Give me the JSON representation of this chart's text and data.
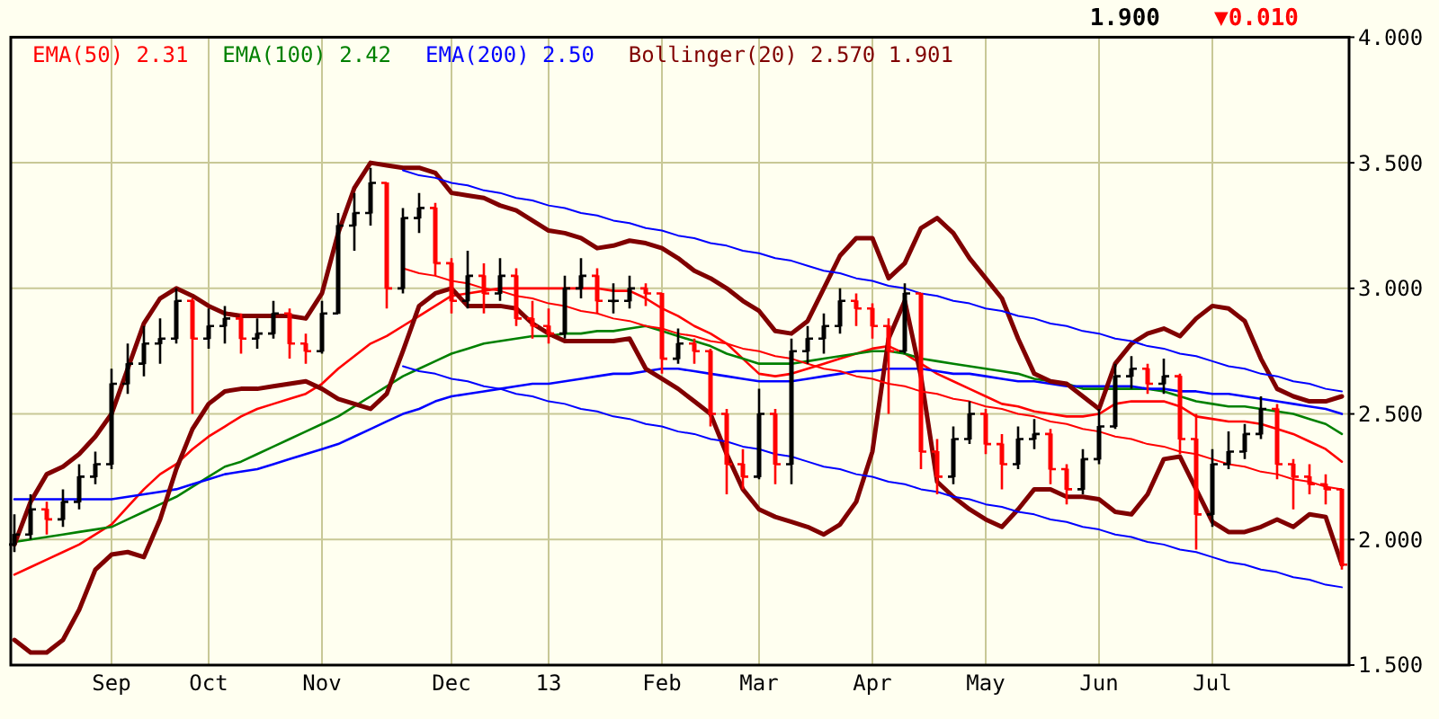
{
  "chart_data": {
    "type": "candlestick",
    "categories": [
      null,
      null,
      null,
      null,
      null,
      null,
      "Sep",
      null,
      null,
      null,
      null,
      null,
      "Oct",
      null,
      null,
      null,
      null,
      null,
      null,
      "Nov",
      null,
      null,
      null,
      null,
      null,
      null,
      null,
      "Dec",
      null,
      null,
      null,
      null,
      null,
      "13",
      null,
      null,
      null,
      null,
      null,
      null,
      "Feb",
      null,
      null,
      null,
      null,
      null,
      "Mar",
      null,
      null,
      null,
      null,
      null,
      null,
      "Apr",
      null,
      null,
      null,
      null,
      null,
      null,
      "May",
      null,
      null,
      null,
      null,
      null,
      null,
      "Jun",
      null,
      null,
      null,
      null,
      null,
      null,
      "Jul",
      null,
      null,
      null,
      null,
      null,
      null,
      null,
      null
    ],
    "ohlc": [
      [
        1.98,
        2.1,
        1.95,
        2.02
      ],
      [
        2.02,
        2.18,
        2.0,
        2.12
      ],
      [
        2.12,
        2.15,
        2.02,
        2.08
      ],
      [
        2.08,
        2.2,
        2.05,
        2.15
      ],
      [
        2.15,
        2.3,
        2.12,
        2.25
      ],
      [
        2.25,
        2.35,
        2.22,
        2.3
      ],
      [
        2.3,
        2.68,
        2.28,
        2.62
      ],
      [
        2.62,
        2.78,
        2.58,
        2.7
      ],
      [
        2.7,
        2.85,
        2.65,
        2.78
      ],
      [
        2.78,
        2.88,
        2.7,
        2.8
      ],
      [
        2.8,
        3.0,
        2.78,
        2.95
      ],
      [
        2.95,
        2.96,
        2.5,
        2.8
      ],
      [
        2.8,
        2.92,
        2.76,
        2.85
      ],
      [
        2.85,
        2.93,
        2.78,
        2.88
      ],
      [
        2.88,
        2.9,
        2.74,
        2.8
      ],
      [
        2.8,
        2.88,
        2.76,
        2.82
      ],
      [
        2.82,
        2.95,
        2.8,
        2.9
      ],
      [
        2.9,
        2.92,
        2.72,
        2.78
      ],
      [
        2.78,
        2.82,
        2.7,
        2.75
      ],
      [
        2.75,
        2.95,
        2.74,
        2.9
      ],
      [
        2.9,
        3.3,
        2.9,
        3.25
      ],
      [
        3.25,
        3.38,
        3.15,
        3.3
      ],
      [
        3.3,
        3.48,
        3.25,
        3.42
      ],
      [
        3.42,
        3.42,
        2.92,
        3.0
      ],
      [
        3.0,
        3.32,
        2.98,
        3.28
      ],
      [
        3.28,
        3.38,
        3.22,
        3.32
      ],
      [
        3.32,
        3.34,
        3.05,
        3.1
      ],
      [
        3.1,
        3.12,
        2.9,
        2.95
      ],
      [
        2.95,
        3.15,
        2.92,
        3.05
      ],
      [
        3.05,
        3.1,
        2.9,
        2.98
      ],
      [
        2.98,
        3.12,
        2.95,
        3.05
      ],
      [
        3.05,
        3.08,
        2.85,
        2.88
      ],
      [
        2.88,
        2.95,
        2.8,
        2.85
      ],
      [
        2.85,
        2.92,
        2.78,
        2.82
      ],
      [
        2.82,
        3.05,
        2.8,
        3.0
      ],
      [
        3.0,
        3.12,
        2.96,
        3.05
      ],
      [
        3.05,
        3.08,
        2.9,
        2.95
      ],
      [
        2.95,
        3.02,
        2.9,
        2.95
      ],
      [
        2.95,
        3.05,
        2.92,
        3.0
      ],
      [
        3.0,
        3.02,
        2.93,
        2.98
      ],
      [
        2.98,
        2.98,
        2.66,
        2.72
      ],
      [
        2.72,
        2.84,
        2.7,
        2.78
      ],
      [
        2.78,
        2.8,
        2.7,
        2.75
      ],
      [
        2.75,
        2.76,
        2.45,
        2.5
      ],
      [
        2.5,
        2.52,
        2.18,
        2.3
      ],
      [
        2.3,
        2.36,
        2.2,
        2.25
      ],
      [
        2.25,
        2.6,
        2.24,
        2.5
      ],
      [
        2.5,
        2.52,
        2.22,
        2.3
      ],
      [
        2.3,
        2.8,
        2.22,
        2.75
      ],
      [
        2.75,
        2.85,
        2.7,
        2.8
      ],
      [
        2.8,
        2.9,
        2.74,
        2.85
      ],
      [
        2.85,
        3.0,
        2.82,
        2.95
      ],
      [
        2.95,
        2.98,
        2.85,
        2.92
      ],
      [
        2.92,
        2.94,
        2.8,
        2.85
      ],
      [
        2.85,
        2.88,
        2.5,
        2.75
      ],
      [
        2.75,
        3.02,
        2.74,
        2.98
      ],
      [
        2.98,
        2.98,
        2.28,
        2.35
      ],
      [
        2.35,
        2.4,
        2.18,
        2.25
      ],
      [
        2.25,
        2.45,
        2.22,
        2.4
      ],
      [
        2.4,
        2.55,
        2.38,
        2.5
      ],
      [
        2.5,
        2.52,
        2.34,
        2.38
      ],
      [
        2.38,
        2.42,
        2.2,
        2.3
      ],
      [
        2.3,
        2.45,
        2.28,
        2.4
      ],
      [
        2.4,
        2.48,
        2.36,
        2.42
      ],
      [
        2.42,
        2.44,
        2.22,
        2.28
      ],
      [
        2.28,
        2.3,
        2.14,
        2.2
      ],
      [
        2.2,
        2.36,
        2.18,
        2.32
      ],
      [
        2.32,
        2.52,
        2.3,
        2.45
      ],
      [
        2.45,
        2.7,
        2.44,
        2.65
      ],
      [
        2.65,
        2.73,
        2.6,
        2.68
      ],
      [
        2.68,
        2.7,
        2.58,
        2.62
      ],
      [
        2.62,
        2.72,
        2.58,
        2.65
      ],
      [
        2.65,
        2.66,
        2.34,
        2.4
      ],
      [
        2.4,
        2.5,
        1.96,
        2.1
      ],
      [
        2.1,
        2.36,
        2.05,
        2.3
      ],
      [
        2.3,
        2.43,
        2.28,
        2.35
      ],
      [
        2.35,
        2.46,
        2.32,
        2.42
      ],
      [
        2.42,
        2.57,
        2.4,
        2.52
      ],
      [
        2.52,
        2.54,
        2.24,
        2.3
      ],
      [
        2.3,
        2.32,
        2.12,
        2.25
      ],
      [
        2.25,
        2.3,
        2.18,
        2.22
      ],
      [
        2.22,
        2.26,
        2.14,
        2.2
      ],
      [
        2.2,
        2.2,
        1.88,
        1.9
      ]
    ],
    "colors": [
      "#000000",
      "#000000",
      "#ff0000",
      "#000000",
      "#000000",
      "#000000",
      "#000000",
      "#000000",
      "#000000",
      "#000000",
      "#000000",
      "#ff0000",
      "#000000",
      "#000000",
      "#ff0000",
      "#000000",
      "#000000",
      "#ff0000",
      "#ff0000",
      "#000000",
      "#000000",
      "#000000",
      "#000000",
      "#ff0000",
      "#000000",
      "#000000",
      "#ff0000",
      "#ff0000",
      "#000000",
      "#ff0000",
      "#000000",
      "#ff0000",
      "#ff0000",
      "#ff0000",
      "#000000",
      "#000000",
      "#ff0000",
      "#000000",
      "#000000",
      "#ff0000",
      "#ff0000",
      "#000000",
      "#ff0000",
      "#ff0000",
      "#ff0000",
      "#ff0000",
      "#000000",
      "#ff0000",
      "#000000",
      "#000000",
      "#000000",
      "#000000",
      "#ff0000",
      "#ff0000",
      "#ff0000",
      "#000000",
      "#ff0000",
      "#ff0000",
      "#000000",
      "#000000",
      "#ff0000",
      "#ff0000",
      "#000000",
      "#000000",
      "#ff0000",
      "#ff0000",
      "#000000",
      "#000000",
      "#000000",
      "#000000",
      "#ff0000",
      "#000000",
      "#ff0000",
      "#ff0000",
      "#000000",
      "#000000",
      "#000000",
      "#000000",
      "#ff0000",
      "#ff0000",
      "#ff0000",
      "#ff0000",
      "#ff0000"
    ],
    "series": [
      {
        "type": "line",
        "name": "EMA(50) 2.31",
        "color": "#ff0000",
        "values": [
          1.86,
          1.89,
          1.92,
          1.95,
          1.98,
          2.02,
          2.06,
          2.13,
          2.2,
          2.26,
          2.3,
          2.36,
          2.41,
          2.45,
          2.49,
          2.52,
          2.54,
          2.56,
          2.58,
          2.62,
          2.68,
          2.73,
          2.78,
          2.81,
          2.85,
          2.89,
          2.93,
          2.97,
          2.98,
          2.99,
          3.0,
          3.0,
          3.0,
          3.0,
          3.0,
          3.0,
          3.0,
          2.99,
          2.99,
          2.96,
          2.92,
          2.89,
          2.85,
          2.82,
          2.78,
          2.72,
          2.66,
          2.65,
          2.66,
          2.68,
          2.7,
          2.72,
          2.74,
          2.76,
          2.77,
          2.74,
          2.7,
          2.66,
          2.63,
          2.6,
          2.57,
          2.54,
          2.53,
          2.51,
          2.5,
          2.49,
          2.49,
          2.5,
          2.54,
          2.55,
          2.55,
          2.55,
          2.53,
          2.49,
          2.48,
          2.47,
          2.47,
          2.46,
          2.44,
          2.42,
          2.39,
          2.36,
          2.31
        ]
      },
      {
        "type": "line",
        "name": "EMA(100) 2.42",
        "color": "#008000",
        "values": [
          1.99,
          2.0,
          2.01,
          2.02,
          2.03,
          2.04,
          2.05,
          2.08,
          2.11,
          2.14,
          2.17,
          2.21,
          2.25,
          2.29,
          2.31,
          2.34,
          2.37,
          2.4,
          2.43,
          2.46,
          2.49,
          2.53,
          2.57,
          2.61,
          2.65,
          2.68,
          2.71,
          2.74,
          2.76,
          2.78,
          2.79,
          2.8,
          2.81,
          2.81,
          2.82,
          2.82,
          2.83,
          2.83,
          2.84,
          2.85,
          2.83,
          2.81,
          2.79,
          2.77,
          2.74,
          2.72,
          2.7,
          2.7,
          2.7,
          2.71,
          2.72,
          2.73,
          2.74,
          2.75,
          2.75,
          2.74,
          2.72,
          2.71,
          2.7,
          2.69,
          2.68,
          2.67,
          2.66,
          2.64,
          2.63,
          2.62,
          2.6,
          2.6,
          2.6,
          2.6,
          2.6,
          2.59,
          2.57,
          2.55,
          2.54,
          2.53,
          2.53,
          2.52,
          2.51,
          2.5,
          2.48,
          2.46,
          2.42
        ]
      },
      {
        "type": "line",
        "name": "EMA(200) 2.50",
        "color": "#0000ff",
        "values": [
          2.16,
          2.16,
          2.16,
          2.16,
          2.16,
          2.16,
          2.16,
          2.17,
          2.18,
          2.19,
          2.2,
          2.22,
          2.24,
          2.26,
          2.27,
          2.28,
          2.3,
          2.32,
          2.34,
          2.36,
          2.38,
          2.41,
          2.44,
          2.47,
          2.5,
          2.52,
          2.55,
          2.57,
          2.58,
          2.59,
          2.6,
          2.61,
          2.62,
          2.62,
          2.63,
          2.64,
          2.65,
          2.66,
          2.66,
          2.67,
          2.68,
          2.68,
          2.67,
          2.66,
          2.65,
          2.64,
          2.63,
          2.63,
          2.63,
          2.64,
          2.65,
          2.66,
          2.67,
          2.67,
          2.68,
          2.68,
          2.68,
          2.67,
          2.66,
          2.66,
          2.65,
          2.64,
          2.63,
          2.63,
          2.62,
          2.61,
          2.61,
          2.61,
          2.61,
          2.61,
          2.6,
          2.6,
          2.59,
          2.59,
          2.58,
          2.58,
          2.57,
          2.56,
          2.55,
          2.54,
          2.53,
          2.52,
          2.5
        ]
      },
      {
        "type": "line",
        "name": "Bollinger(20) 2.570 1.901",
        "color": "#800000",
        "values": [
          1.98,
          2.15,
          2.26,
          2.29,
          2.34,
          2.41,
          2.5,
          2.68,
          2.86,
          2.96,
          3.0,
          2.97,
          2.93,
          2.9,
          2.89,
          2.89,
          2.89,
          2.89,
          2.88,
          2.98,
          3.22,
          3.4,
          3.5,
          3.49,
          3.48,
          3.48,
          3.46,
          3.38,
          3.37,
          3.36,
          3.33,
          3.31,
          3.27,
          3.23,
          3.22,
          3.2,
          3.16,
          3.17,
          3.19,
          3.18,
          3.16,
          3.12,
          3.07,
          3.04,
          3.0,
          2.95,
          2.91,
          2.83,
          2.82,
          2.87,
          3.0,
          3.13,
          3.2,
          3.2,
          3.04,
          3.1,
          3.24,
          3.28,
          3.22,
          3.12,
          3.04,
          2.96,
          2.8,
          2.66,
          2.63,
          2.62,
          2.57,
          2.52,
          2.7,
          2.78,
          2.82,
          2.84,
          2.81,
          2.88,
          2.93,
          2.92,
          2.87,
          2.72,
          2.6,
          2.57,
          2.55,
          2.55,
          2.57
        ]
      },
      {
        "type": "line",
        "color": "#800000",
        "values": [
          1.6,
          1.55,
          1.55,
          1.6,
          1.72,
          1.88,
          1.94,
          1.95,
          1.93,
          2.08,
          2.28,
          2.44,
          2.54,
          2.59,
          2.6,
          2.6,
          2.61,
          2.62,
          2.63,
          2.6,
          2.56,
          2.54,
          2.52,
          2.58,
          2.75,
          2.93,
          2.98,
          3.0,
          2.93,
          2.93,
          2.93,
          2.92,
          2.86,
          2.82,
          2.79,
          2.79,
          2.79,
          2.79,
          2.8,
          2.68,
          2.64,
          2.6,
          2.55,
          2.5,
          2.34,
          2.2,
          2.12,
          2.09,
          2.07,
          2.05,
          2.02,
          2.06,
          2.15,
          2.35,
          2.8,
          2.95,
          2.65,
          2.23,
          2.17,
          2.12,
          2.08,
          2.05,
          2.12,
          2.2,
          2.2,
          2.17,
          2.17,
          2.16,
          2.11,
          2.1,
          2.18,
          2.32,
          2.33,
          2.2,
          2.07,
          2.03,
          2.03,
          2.05,
          2.08,
          2.05,
          2.1,
          2.09,
          1.9
        ]
      },
      {
        "type": "line",
        "color": "#0000ff",
        "values": [
          null,
          null,
          null,
          null,
          null,
          null,
          null,
          null,
          null,
          null,
          null,
          null,
          null,
          null,
          null,
          null,
          null,
          null,
          null,
          null,
          null,
          null,
          null,
          null,
          3.47,
          3.45,
          3.44,
          3.42,
          3.41,
          3.39,
          3.38,
          3.36,
          3.35,
          3.33,
          3.32,
          3.3,
          3.29,
          3.27,
          3.26,
          3.24,
          3.23,
          3.21,
          3.2,
          3.18,
          3.17,
          3.15,
          3.14,
          3.12,
          3.11,
          3.09,
          3.07,
          3.06,
          3.04,
          3.03,
          3.01,
          3.0,
          2.98,
          2.97,
          2.95,
          2.94,
          2.92,
          2.91,
          2.89,
          2.88,
          2.86,
          2.85,
          2.83,
          2.82,
          2.8,
          2.79,
          2.77,
          2.76,
          2.74,
          2.73,
          2.71,
          2.69,
          2.68,
          2.66,
          2.65,
          2.63,
          2.62,
          2.6,
          2.59
        ]
      },
      {
        "type": "line",
        "color": "#ff0000",
        "values": [
          null,
          null,
          null,
          null,
          null,
          null,
          null,
          null,
          null,
          null,
          null,
          null,
          null,
          null,
          null,
          null,
          null,
          null,
          null,
          null,
          null,
          null,
          null,
          null,
          3.08,
          3.06,
          3.05,
          3.03,
          3.02,
          3.0,
          2.99,
          2.97,
          2.96,
          2.94,
          2.93,
          2.91,
          2.9,
          2.88,
          2.87,
          2.85,
          2.84,
          2.82,
          2.81,
          2.79,
          2.78,
          2.76,
          2.75,
          2.73,
          2.72,
          2.7,
          2.68,
          2.67,
          2.65,
          2.64,
          2.62,
          2.61,
          2.59,
          2.58,
          2.56,
          2.55,
          2.53,
          2.52,
          2.5,
          2.49,
          2.47,
          2.46,
          2.44,
          2.43,
          2.41,
          2.4,
          2.38,
          2.37,
          2.35,
          2.34,
          2.32,
          2.3,
          2.29,
          2.27,
          2.26,
          2.24,
          2.23,
          2.21,
          2.2
        ]
      },
      {
        "type": "line",
        "color": "#0000ff",
        "values": [
          null,
          null,
          null,
          null,
          null,
          null,
          null,
          null,
          null,
          null,
          null,
          null,
          null,
          null,
          null,
          null,
          null,
          null,
          null,
          null,
          null,
          null,
          null,
          null,
          2.69,
          2.67,
          2.66,
          2.64,
          2.63,
          2.61,
          2.6,
          2.58,
          2.57,
          2.55,
          2.54,
          2.52,
          2.51,
          2.49,
          2.48,
          2.46,
          2.45,
          2.43,
          2.42,
          2.4,
          2.39,
          2.37,
          2.36,
          2.34,
          2.33,
          2.31,
          2.29,
          2.28,
          2.26,
          2.25,
          2.23,
          2.22,
          2.2,
          2.19,
          2.17,
          2.16,
          2.14,
          2.13,
          2.11,
          2.1,
          2.08,
          2.07,
          2.05,
          2.04,
          2.02,
          2.01,
          1.99,
          1.98,
          1.96,
          1.95,
          1.93,
          1.91,
          1.9,
          1.88,
          1.87,
          1.85,
          1.84,
          1.82,
          1.81
        ]
      }
    ],
    "ylim": [
      1.5,
      4.0
    ],
    "yticks": [
      {
        "value": 1.5,
        "label": "1.500"
      },
      {
        "value": 2.0,
        "label": "2.000"
      },
      {
        "value": 2.5,
        "label": "2.500"
      },
      {
        "value": 3.0,
        "label": "3.000"
      },
      {
        "value": 3.5,
        "label": "3.500"
      },
      {
        "value": 4.0,
        "label": "4.000"
      }
    ],
    "grid": true,
    "legend": "top left",
    "annotations": [
      "1.900",
      "▼0.010"
    ]
  }
}
